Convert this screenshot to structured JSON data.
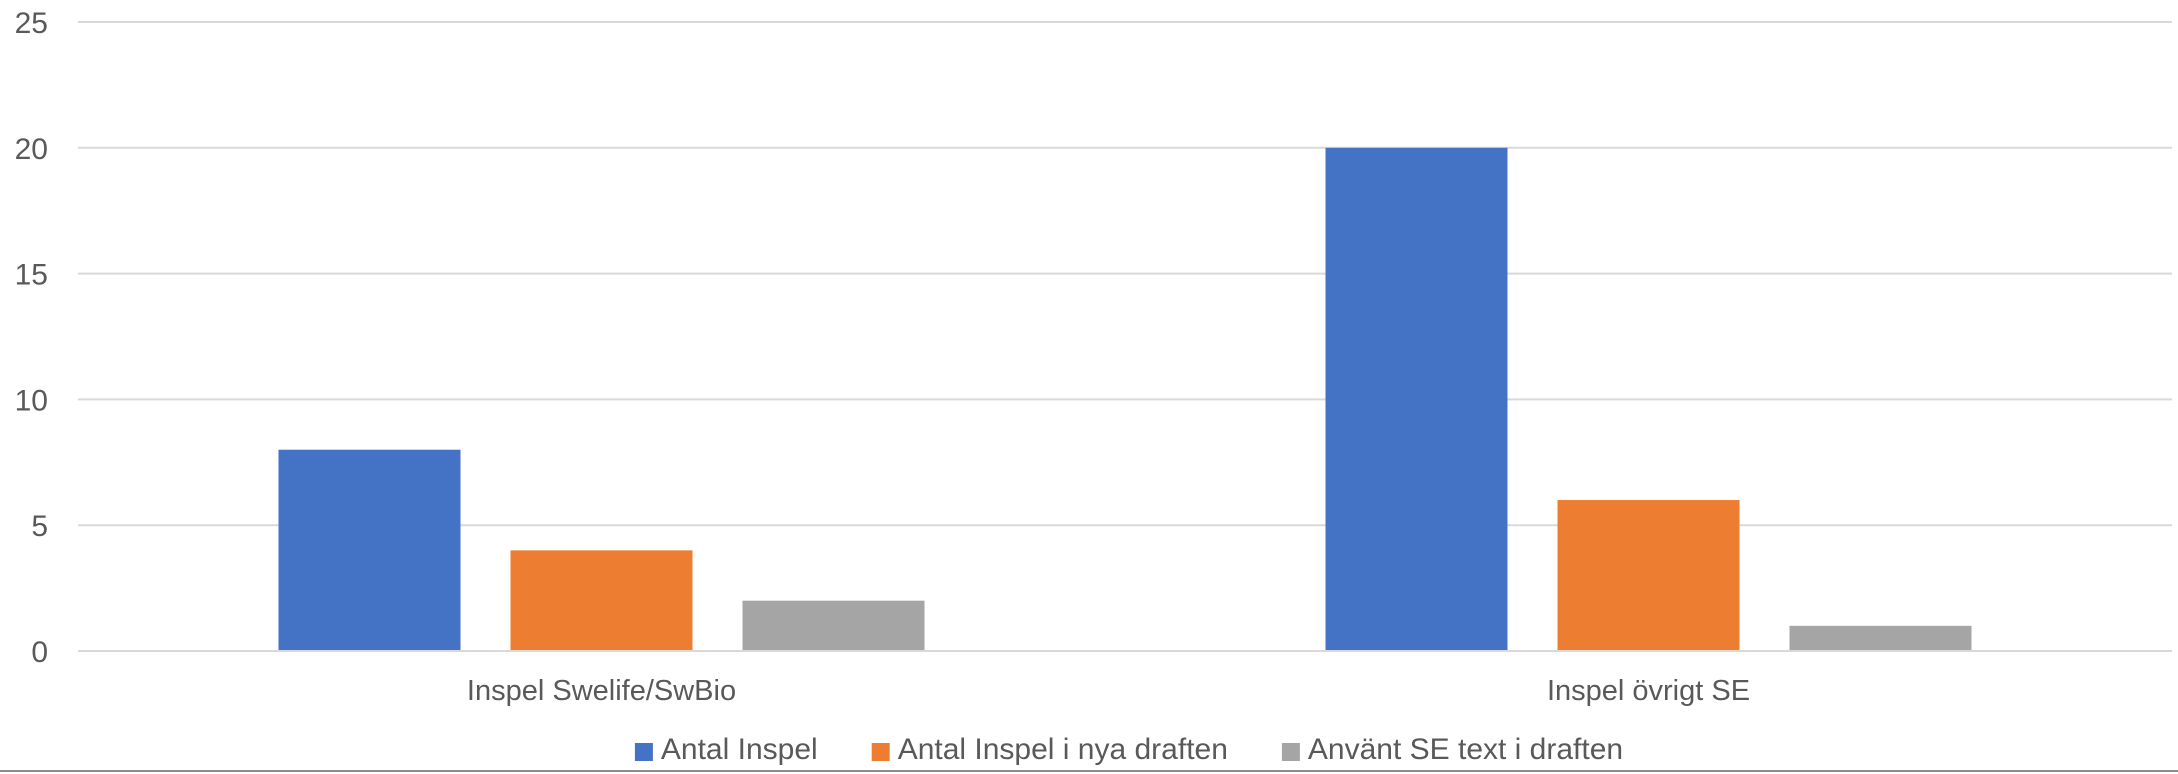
{
  "chart_data": {
    "type": "bar",
    "title": "",
    "xlabel": "",
    "ylabel": "",
    "categories": [
      "Inspel Swelife/SwBio",
      "Inspel övrigt SE"
    ],
    "series": [
      {
        "name": "Antal Inspel",
        "values": [
          8,
          20
        ],
        "color": "#4472c4"
      },
      {
        "name": "Antal Inspel i nya draften",
        "values": [
          4,
          6
        ],
        "color": "#ed7d31"
      },
      {
        "name": "Använt SE text i draften",
        "values": [
          2,
          1
        ],
        "color": "#a5a5a5"
      }
    ],
    "ylim": [
      0,
      25
    ],
    "yticks": [
      0,
      5,
      10,
      15,
      20,
      25
    ],
    "grid": true,
    "legend_position": "bottom"
  }
}
